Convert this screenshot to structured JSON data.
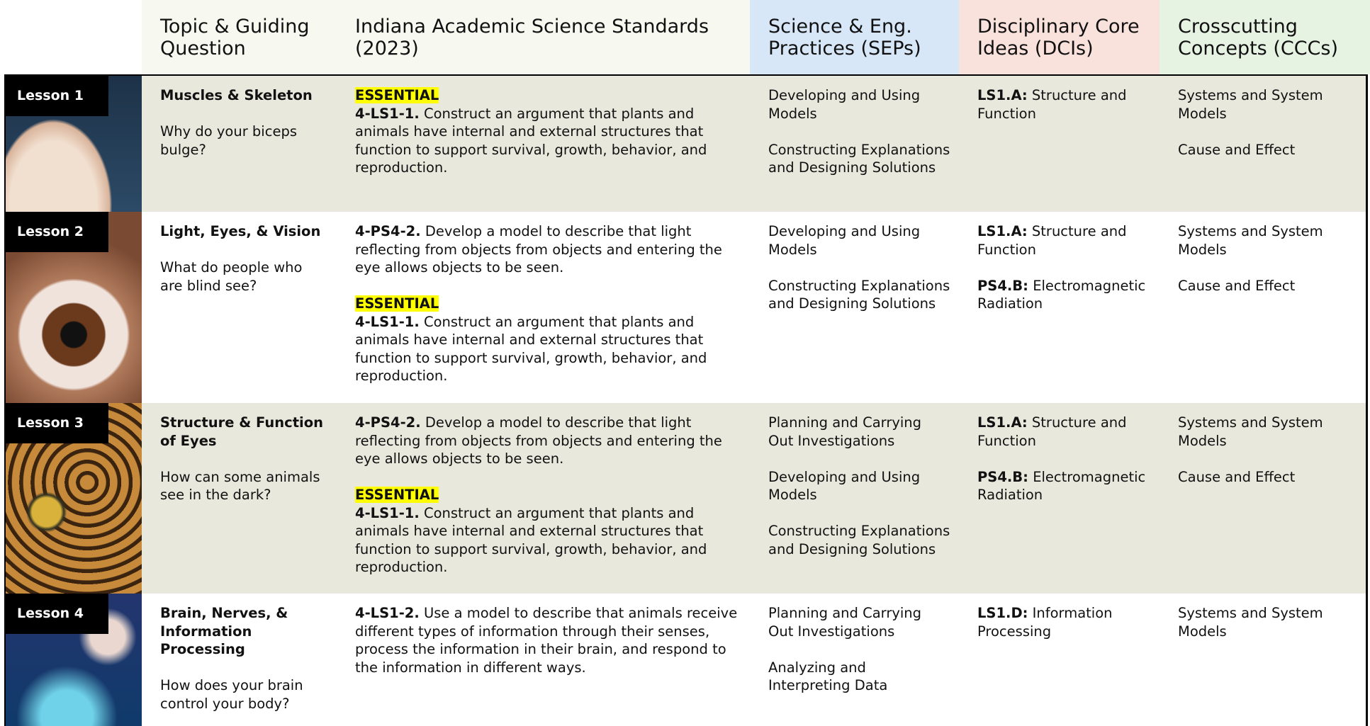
{
  "header": {
    "columns": [
      "Topic & Guiding Question",
      "Indiana Academic Science Standards (2023)",
      "Science & Eng. Practices (SEPs)",
      "Disciplinary Core Ideas (DCIs)",
      "Crosscutting Concepts (CCCs)"
    ]
  },
  "rows": [
    {
      "lesson": "Lesson 1",
      "topic": "Muscles & Skeleton",
      "question": "Why do your biceps bulge?",
      "standards": [
        {
          "tag": "ESSENTIAL",
          "code": "4-LS1-1.",
          "text": "Construct an argument that plants and animals have internal and external structures that function to support survival, growth, behavior, and reproduction."
        }
      ],
      "seps": [
        "Developing and Using Models",
        "Constructing Explanations and Designing Solutions"
      ],
      "dcis": [
        {
          "code": "LS1.A:",
          "text": "Structure and Function"
        }
      ],
      "cccs": [
        "Systems and System Models",
        "Cause and Effect"
      ]
    },
    {
      "lesson": "Lesson 2",
      "topic": "Light, Eyes, & Vision",
      "question": "What do people who are blind see?",
      "standards": [
        {
          "code": "4-PS4-2.",
          "text": "Develop a model to describe that light reflecting from objects from objects and entering the eye allows objects to be seen."
        },
        {
          "tag": "ESSENTIAL",
          "code": "4-LS1-1.",
          "text": "Construct an argument that plants and animals have internal and external structures that function to support survival, growth, behavior, and reproduction."
        }
      ],
      "seps": [
        "Developing and Using Models",
        "Constructing Explanations and Designing Solutions"
      ],
      "dcis": [
        {
          "code": "LS1.A:",
          "text": "Structure and Function"
        },
        {
          "code": "PS4.B:",
          "text": "Electromagnetic Radiation"
        }
      ],
      "cccs": [
        "Systems and System Models",
        "Cause and Effect"
      ]
    },
    {
      "lesson": "Lesson 3",
      "topic": "Structure & Function of Eyes",
      "question": "How can some animals see in the dark?",
      "standards": [
        {
          "code": "4-PS4-2.",
          "text": "Develop a model to describe that light reflecting from objects from objects and entering the eye allows objects to be seen."
        },
        {
          "tag": "ESSENTIAL",
          "code": "4-LS1-1.",
          "text": "Construct an argument that plants and animals have internal and external structures that function to support survival, growth, behavior, and reproduction."
        }
      ],
      "seps": [
        "Planning and Carrying Out Investigations",
        "Developing and Using Models",
        "Constructing Explanations and Designing Solutions"
      ],
      "dcis": [
        {
          "code": "LS1.A:",
          "text": "Structure and Function"
        },
        {
          "code": "PS4.B:",
          "text": "Electromagnetic Radiation"
        }
      ],
      "cccs": [
        "Systems and System Models",
        "Cause and Effect"
      ]
    },
    {
      "lesson": "Lesson 4",
      "topic": "Brain, Nerves, & Information Processing",
      "question": "How does your brain control your body?",
      "standards": [
        {
          "code": "4-LS1-2.",
          "text": "Use a model to describe that animals receive different types of information through their senses, process the information in their brain, and respond to the information in different ways."
        }
      ],
      "seps": [
        "Planning and Carrying Out Investigations",
        "Analyzing and Interpreting Data"
      ],
      "dcis": [
        {
          "code": "LS1.D:",
          "text": "Information Processing"
        }
      ],
      "cccs": [
        "Systems and System Models"
      ]
    }
  ]
}
